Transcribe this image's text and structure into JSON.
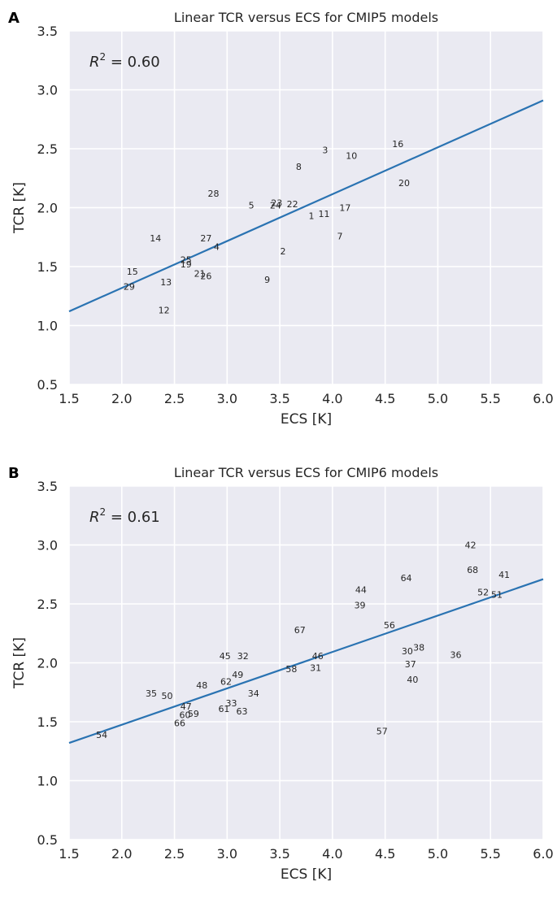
{
  "chart_data": [
    {
      "type": "scatter",
      "panel_label": "A",
      "title": "Linear TCR versus ECS for CMIP5 models",
      "xlabel": "ECS [K]",
      "ylabel": "TCR [K]",
      "xlim": [
        1.5,
        6.0
      ],
      "ylim": [
        0.5,
        3.5
      ],
      "xticks": [
        "1.5",
        "2.0",
        "2.5",
        "3.0",
        "3.5",
        "4.0",
        "4.5",
        "5.0",
        "5.5",
        "6.0"
      ],
      "yticks": [
        "0.5",
        "1.0",
        "1.5",
        "2.0",
        "2.5",
        "3.0",
        "3.5"
      ],
      "grid": true,
      "r2_label": "R",
      "r2_sup": "2",
      "r2_value": " = 0.60",
      "fit_line": {
        "x": [
          1.5,
          6.0
        ],
        "y": [
          1.12,
          2.91
        ],
        "color": "#2a73b2"
      },
      "points": [
        {
          "label": "1",
          "x": 3.8,
          "y": 1.93
        },
        {
          "label": "2",
          "x": 3.53,
          "y": 1.63
        },
        {
          "label": "3",
          "x": 3.93,
          "y": 2.49
        },
        {
          "label": "4",
          "x": 2.9,
          "y": 1.67
        },
        {
          "label": "5",
          "x": 3.23,
          "y": 2.02
        },
        {
          "label": "7",
          "x": 4.07,
          "y": 1.76
        },
        {
          "label": "8",
          "x": 3.68,
          "y": 2.35
        },
        {
          "label": "9",
          "x": 3.38,
          "y": 1.39
        },
        {
          "label": "10",
          "x": 4.18,
          "y": 2.44
        },
        {
          "label": "11",
          "x": 3.92,
          "y": 1.95
        },
        {
          "label": "12",
          "x": 2.4,
          "y": 1.13
        },
        {
          "label": "13",
          "x": 2.42,
          "y": 1.37
        },
        {
          "label": "14",
          "x": 2.32,
          "y": 1.74
        },
        {
          "label": "15",
          "x": 2.1,
          "y": 1.46
        },
        {
          "label": "16",
          "x": 4.62,
          "y": 2.54
        },
        {
          "label": "17",
          "x": 4.12,
          "y": 2.0
        },
        {
          "label": "19",
          "x": 2.61,
          "y": 1.52
        },
        {
          "label": "20",
          "x": 4.68,
          "y": 2.21
        },
        {
          "label": "21",
          "x": 2.74,
          "y": 1.44
        },
        {
          "label": "22",
          "x": 3.62,
          "y": 2.03
        },
        {
          "label": "23",
          "x": 3.47,
          "y": 2.04
        },
        {
          "label": "24",
          "x": 3.46,
          "y": 2.02
        },
        {
          "label": "25",
          "x": 2.61,
          "y": 1.56
        },
        {
          "label": "26",
          "x": 2.8,
          "y": 1.42
        },
        {
          "label": "27",
          "x": 2.8,
          "y": 1.74
        },
        {
          "label": "28",
          "x": 2.87,
          "y": 2.12
        },
        {
          "label": "29",
          "x": 2.07,
          "y": 1.33
        }
      ]
    },
    {
      "type": "scatter",
      "panel_label": "B",
      "title": "Linear TCR versus ECS for CMIP6 models",
      "xlabel": "ECS [K]",
      "ylabel": "TCR [K]",
      "xlim": [
        1.5,
        6.0
      ],
      "ylim": [
        0.5,
        3.5
      ],
      "xticks": [
        "1.5",
        "2.0",
        "2.5",
        "3.0",
        "3.5",
        "4.0",
        "4.5",
        "5.0",
        "5.5",
        "6.0"
      ],
      "yticks": [
        "0.5",
        "1.0",
        "1.5",
        "2.0",
        "2.5",
        "3.0",
        "3.5"
      ],
      "grid": true,
      "r2_label": "R",
      "r2_sup": "2",
      "r2_value": " = 0.61",
      "fit_line": {
        "x": [
          1.5,
          6.0
        ],
        "y": [
          1.32,
          2.71
        ],
        "color": "#2a73b2"
      },
      "points": [
        {
          "label": "30",
          "x": 4.71,
          "y": 2.1
        },
        {
          "label": "31",
          "x": 3.84,
          "y": 1.96
        },
        {
          "label": "32",
          "x": 3.15,
          "y": 2.06
        },
        {
          "label": "33",
          "x": 3.04,
          "y": 1.66
        },
        {
          "label": "34",
          "x": 3.25,
          "y": 1.74
        },
        {
          "label": "35",
          "x": 2.28,
          "y": 1.74
        },
        {
          "label": "36",
          "x": 5.17,
          "y": 2.07
        },
        {
          "label": "37",
          "x": 4.74,
          "y": 1.99
        },
        {
          "label": "38",
          "x": 4.82,
          "y": 2.13
        },
        {
          "label": "39",
          "x": 4.26,
          "y": 2.49
        },
        {
          "label": "40",
          "x": 4.76,
          "y": 1.86
        },
        {
          "label": "41",
          "x": 5.63,
          "y": 2.75
        },
        {
          "label": "42",
          "x": 5.31,
          "y": 3.0
        },
        {
          "label": "44",
          "x": 4.27,
          "y": 2.62
        },
        {
          "label": "45",
          "x": 2.98,
          "y": 2.06
        },
        {
          "label": "46",
          "x": 3.86,
          "y": 2.06
        },
        {
          "label": "47",
          "x": 2.61,
          "y": 1.63
        },
        {
          "label": "48",
          "x": 2.76,
          "y": 1.81
        },
        {
          "label": "49",
          "x": 3.1,
          "y": 1.9
        },
        {
          "label": "50",
          "x": 2.43,
          "y": 1.72
        },
        {
          "label": "51",
          "x": 5.56,
          "y": 2.58
        },
        {
          "label": "52",
          "x": 5.43,
          "y": 2.6
        },
        {
          "label": "54",
          "x": 1.81,
          "y": 1.39
        },
        {
          "label": "56",
          "x": 4.54,
          "y": 2.32
        },
        {
          "label": "57",
          "x": 4.47,
          "y": 1.42
        },
        {
          "label": "58",
          "x": 3.61,
          "y": 1.95
        },
        {
          "label": "59",
          "x": 2.68,
          "y": 1.57
        },
        {
          "label": "60",
          "x": 2.6,
          "y": 1.56
        },
        {
          "label": "61",
          "x": 2.97,
          "y": 1.61
        },
        {
          "label": "62",
          "x": 2.99,
          "y": 1.84
        },
        {
          "label": "63",
          "x": 3.14,
          "y": 1.59
        },
        {
          "label": "64",
          "x": 4.7,
          "y": 2.72
        },
        {
          "label": "66",
          "x": 2.55,
          "y": 1.49
        },
        {
          "label": "67",
          "x": 3.69,
          "y": 2.28
        },
        {
          "label": "68",
          "x": 5.33,
          "y": 2.79
        }
      ]
    }
  ]
}
